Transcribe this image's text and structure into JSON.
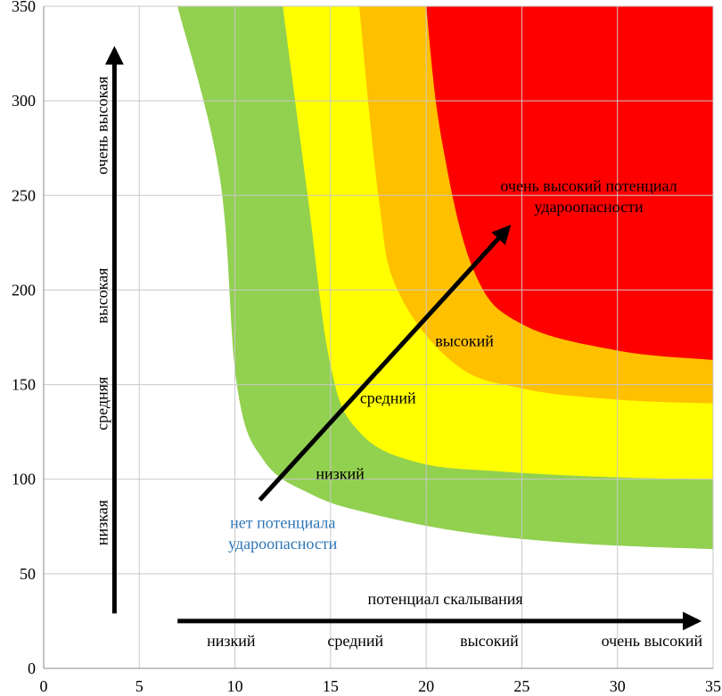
{
  "chart_data": {
    "type": "area",
    "xlim": [
      0,
      35
    ],
    "ylim": [
      0,
      350
    ],
    "x_ticks": [
      0,
      5,
      10,
      15,
      20,
      25,
      30,
      35
    ],
    "y_ticks": [
      0,
      50,
      100,
      150,
      200,
      250,
      300,
      350
    ],
    "grid": true,
    "zones": [
      {
        "color": "#92d050",
        "boundary": [
          [
            7,
            350
          ],
          [
            9.2,
            260
          ],
          [
            10.1,
            150
          ],
          [
            11.5,
            110
          ],
          [
            14,
            92
          ],
          [
            17,
            82
          ],
          [
            22,
            72
          ],
          [
            28,
            66
          ],
          [
            35,
            63
          ]
        ]
      },
      {
        "color": "#ffff00",
        "boundary": [
          [
            12.5,
            350
          ],
          [
            13.8,
            250
          ],
          [
            15,
            160
          ],
          [
            16.5,
            125
          ],
          [
            19.5,
            109
          ],
          [
            24,
            104
          ],
          [
            30,
            101
          ],
          [
            35,
            100
          ]
        ]
      },
      {
        "color": "#ffc000",
        "boundary": [
          [
            16.5,
            350
          ],
          [
            17.5,
            250
          ],
          [
            18.5,
            200
          ],
          [
            21.5,
            161
          ],
          [
            25,
            148
          ],
          [
            30,
            142
          ],
          [
            35,
            140
          ]
        ]
      },
      {
        "color": "#ff0000",
        "boundary": [
          [
            20,
            350
          ],
          [
            20.8,
            280
          ],
          [
            22.5,
            210
          ],
          [
            25,
            182
          ],
          [
            30,
            168
          ],
          [
            35,
            163
          ]
        ]
      }
    ],
    "zone_labels": [
      {
        "text": "очень высокий потенциал",
        "x": 28.5,
        "y": 255
      },
      {
        "text": "удароопасности",
        "x": 28.5,
        "y": 244
      },
      {
        "text": "высокий",
        "x": 22,
        "y": 173
      },
      {
        "text": "средний",
        "x": 18,
        "y": 143
      },
      {
        "text": "низкий",
        "x": 15.5,
        "y": 103
      },
      {
        "text": "нет потенциала",
        "x": 12.5,
        "y": 77
      },
      {
        "text": "удароопасности",
        "x": 12.5,
        "y": 66
      }
    ],
    "no_potential_color": "#2e75b6",
    "diagonal_arrow": {
      "from": [
        11.3,
        89
      ],
      "to": [
        24.3,
        233
      ]
    },
    "y_arrow": {
      "x": 3.7,
      "from": 29,
      "to": 327,
      "labels": [
        {
          "text": "очень высокая",
          "y": 287
        },
        {
          "text": "высокая",
          "y": 197
        },
        {
          "text": "средняя",
          "y": 140
        },
        {
          "text": "низкая",
          "y": 77
        }
      ]
    },
    "x_arrow": {
      "title": "потенциал скалывания",
      "y": 25,
      "from": 7,
      "to": 34.2,
      "labels": [
        {
          "text": "низкий",
          "x": 9.8
        },
        {
          "text": "средний",
          "x": 16.3
        },
        {
          "text": "высокий",
          "x": 23.3
        },
        {
          "text": "очень высокий",
          "x": 31.8
        }
      ]
    }
  }
}
